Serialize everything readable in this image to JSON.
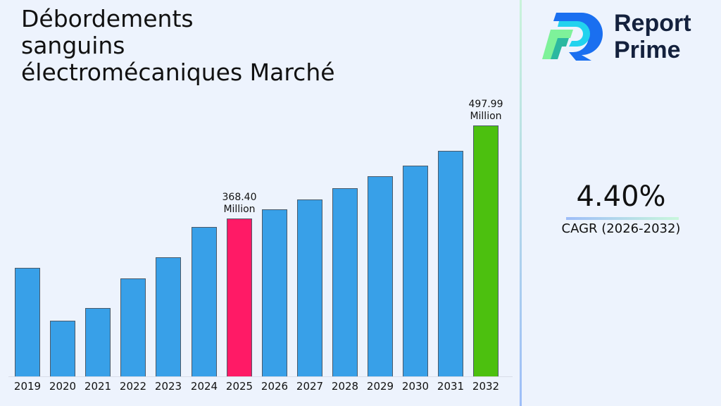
{
  "title": "Débordements\nsanguins\nélectromécaniques Marché",
  "brand": {
    "name_line1": "Report",
    "name_line2": "Prime"
  },
  "cagr": {
    "value": "4.40%",
    "label": "CAGR (2026-2032)"
  },
  "colors": {
    "default_bar": "#38a0e8",
    "highlight_2025": "#ff1a66",
    "highlight_2032": "#4cc00f",
    "background": "#edf3fd",
    "brand_text": "#14213d"
  },
  "chart_data": {
    "type": "bar",
    "title": "Débordements sanguins électromécaniques Marché",
    "xlabel": "",
    "ylabel": "",
    "unit": "Million",
    "categories": [
      "2019",
      "2020",
      "2021",
      "2022",
      "2023",
      "2024",
      "2025",
      "2026",
      "2027",
      "2028",
      "2029",
      "2030",
      "2031",
      "2032"
    ],
    "values": [
      299.7,
      226.0,
      243.7,
      285.0,
      314.4,
      356.6,
      368.4,
      381.1,
      394.9,
      410.6,
      427.3,
      442.0,
      462.6,
      497.99
    ],
    "annotations": [
      {
        "category": "2025",
        "text": "368.40\nMillion",
        "line1": "368.40",
        "line2": "Million"
      },
      {
        "category": "2032",
        "text": "497.99\nMillion",
        "line1": "497.99",
        "line2": "Million"
      }
    ],
    "bar_colors": [
      "#38a0e8",
      "#38a0e8",
      "#38a0e8",
      "#38a0e8",
      "#38a0e8",
      "#38a0e8",
      "#ff1a66",
      "#38a0e8",
      "#38a0e8",
      "#38a0e8",
      "#38a0e8",
      "#38a0e8",
      "#38a0e8",
      "#4cc00f"
    ],
    "grid": false,
    "legend": "none",
    "y_axis_visible": false
  }
}
